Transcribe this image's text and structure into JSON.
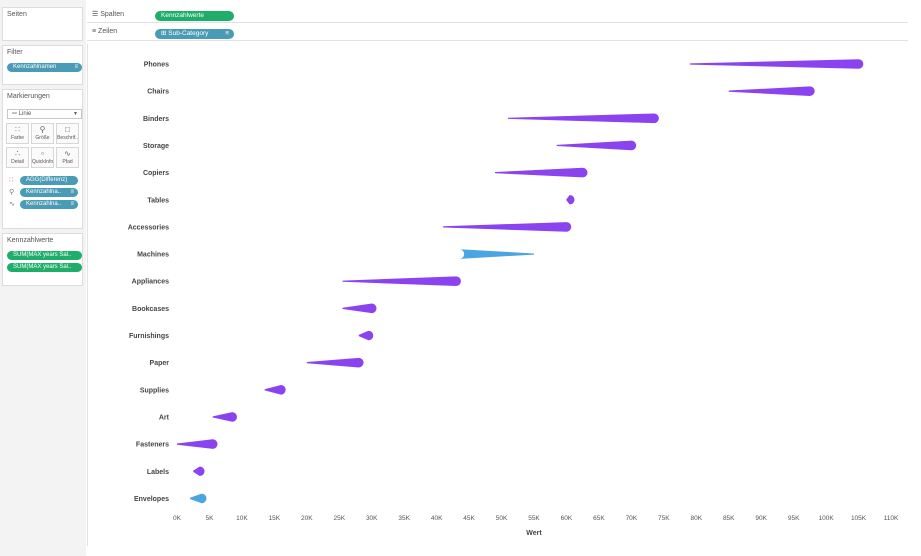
{
  "pages_panel": {
    "title": "Seiten"
  },
  "filter_panel": {
    "title": "Filter",
    "pill": "Kennzahlnamen"
  },
  "marks_panel": {
    "title": "Markierungen",
    "mark_type": "Linie",
    "buttons": [
      {
        "label": "Farbe",
        "icon": "color-icon"
      },
      {
        "label": "Größe",
        "icon": "size-icon"
      },
      {
        "label": "Beschrif..",
        "icon": "label-icon"
      },
      {
        "label": "Detail",
        "icon": "detail-icon"
      },
      {
        "label": "QuickInfo",
        "icon": "tooltip-icon"
      },
      {
        "label": "Pfad",
        "icon": "path-icon"
      }
    ],
    "pills": [
      {
        "label": "AGG(Differenz)",
        "icon": "color-icon"
      },
      {
        "label": "Kennzahlna..",
        "icon": "size-icon"
      },
      {
        "label": "Kennzahlna..",
        "icon": "path-icon"
      }
    ]
  },
  "measures_panel": {
    "title": "Kennzahlwerte",
    "pills": [
      "SUM(MAX years Sal..",
      "SUM(MAX years Sal.."
    ]
  },
  "shelves": {
    "columns_label": "Spalten",
    "columns_pill": "Kennzahlwerte",
    "rows_label": "Zeilen",
    "rows_pill": "Sub-Category"
  },
  "colors": {
    "purple": "#8b43f0",
    "blue": "#4ba5e0",
    "pill_green": "#1fae6a",
    "pill_blue": "#4a9bb5"
  },
  "chart_data": {
    "type": "line",
    "xlabel": "Wert",
    "ylabel": "",
    "xlim": [
      0,
      110000
    ],
    "x_ticks": [
      "0K",
      "5K",
      "10K",
      "15K",
      "20K",
      "25K",
      "30K",
      "35K",
      "40K",
      "45K",
      "50K",
      "55K",
      "60K",
      "65K",
      "70K",
      "75K",
      "80K",
      "85K",
      "90K",
      "95K",
      "100K",
      "105K",
      "110K"
    ],
    "x_tick_values": [
      0,
      5000,
      10000,
      15000,
      20000,
      25000,
      30000,
      35000,
      40000,
      45000,
      50000,
      55000,
      60000,
      65000,
      70000,
      75000,
      80000,
      85000,
      90000,
      95000,
      100000,
      105000,
      110000
    ],
    "categories": [
      "Phones",
      "Chairs",
      "Binders",
      "Storage",
      "Copiers",
      "Tables",
      "Accessories",
      "Machines",
      "Appliances",
      "Bookcases",
      "Furnishings",
      "Paper",
      "Supplies",
      "Art",
      "Fasteners",
      "Labels",
      "Envelopes"
    ],
    "series": [
      {
        "values": [
          79000,
          85000,
          51000,
          58500,
          49000,
          60000,
          41000,
          55000,
          25500,
          25500,
          28000,
          20000,
          13500,
          5500,
          0,
          2500,
          2000
        ]
      },
      {
        "values": [
          105000,
          97500,
          73500,
          70000,
          62500,
          60500,
          60000,
          43500,
          43000,
          30000,
          29500,
          28000,
          16000,
          8500,
          5500,
          3500,
          3800
        ]
      }
    ],
    "difference_color": [
      "purple",
      "purple",
      "purple",
      "purple",
      "purple",
      "purple",
      "purple",
      "blue",
      "purple",
      "purple",
      "purple",
      "purple",
      "purple",
      "purple",
      "purple",
      "purple",
      "blue"
    ]
  }
}
